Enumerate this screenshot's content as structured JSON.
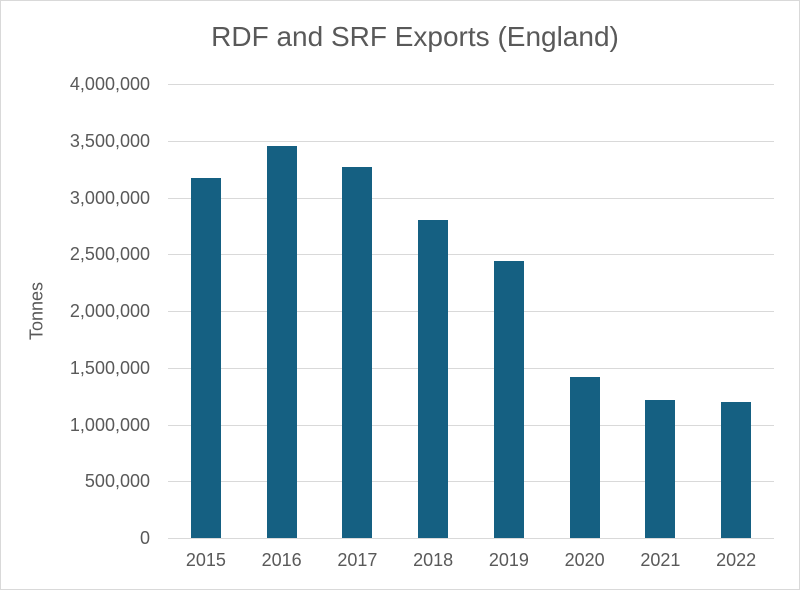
{
  "chart_data": {
    "type": "bar",
    "title": "RDF and SRF Exports (England)",
    "xlabel": "",
    "ylabel": "Tonnes",
    "categories": [
      "2015",
      "2016",
      "2017",
      "2018",
      "2019",
      "2020",
      "2021",
      "2022"
    ],
    "values": [
      3170000,
      3450000,
      3270000,
      2800000,
      2440000,
      1420000,
      1220000,
      1200000
    ],
    "ylim": [
      0,
      4000000
    ],
    "ytick_interval": 500000,
    "ytick_labels": [
      "4,000,000",
      "3,500,000",
      "3,000,000",
      "2,500,000",
      "2,000,000",
      "1,500,000",
      "1,000,000",
      "500,000",
      "0"
    ],
    "grid": "horizontal",
    "legend": "none",
    "bar_color": "#156082",
    "gridline_color": "#d9d9d9",
    "text_color": "#595959",
    "frame_border_color": "#d9d9d9"
  }
}
